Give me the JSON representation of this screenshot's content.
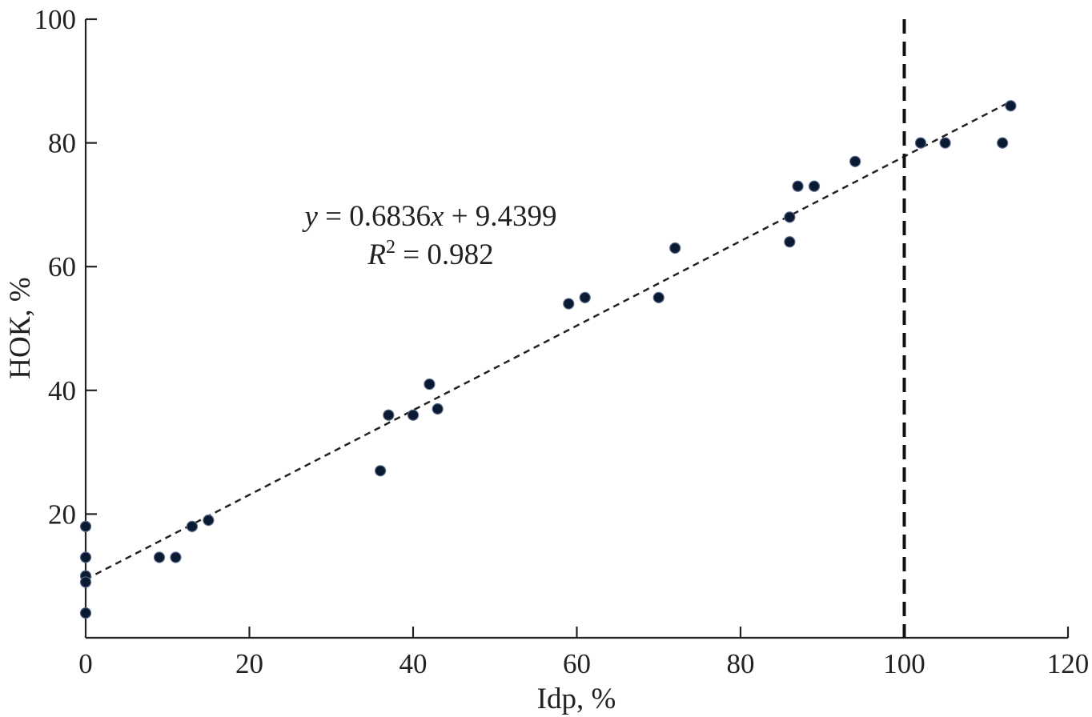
{
  "chart_data": {
    "type": "scatter",
    "title": "",
    "xlabel": "Idp, %",
    "ylabel": "НОК, %",
    "xlim": [
      0,
      120
    ],
    "ylim": [
      0,
      100
    ],
    "x_ticks": [
      0,
      20,
      40,
      60,
      80,
      100,
      120
    ],
    "y_ticks": [
      20,
      40,
      60,
      80,
      100
    ],
    "grid": false,
    "legend": "none",
    "series": [
      {
        "points": [
          {
            "x": 0,
            "y": 18
          },
          {
            "x": 0,
            "y": 13
          },
          {
            "x": 0,
            "y": 10
          },
          {
            "x": 0,
            "y": 9
          },
          {
            "x": 0,
            "y": 4
          },
          {
            "x": 9,
            "y": 13
          },
          {
            "x": 11,
            "y": 13
          },
          {
            "x": 13,
            "y": 18
          },
          {
            "x": 15,
            "y": 19
          },
          {
            "x": 36,
            "y": 27
          },
          {
            "x": 37,
            "y": 36
          },
          {
            "x": 40,
            "y": 36
          },
          {
            "x": 42,
            "y": 41
          },
          {
            "x": 43,
            "y": 37
          },
          {
            "x": 59,
            "y": 54
          },
          {
            "x": 61,
            "y": 55
          },
          {
            "x": 70,
            "y": 55
          },
          {
            "x": 72,
            "y": 63
          },
          {
            "x": 86,
            "y": 68
          },
          {
            "x": 86,
            "y": 64
          },
          {
            "x": 87,
            "y": 73
          },
          {
            "x": 89,
            "y": 73
          },
          {
            "x": 94,
            "y": 77
          },
          {
            "x": 102,
            "y": 80
          },
          {
            "x": 105,
            "y": 80
          },
          {
            "x": 112,
            "y": 80
          },
          {
            "x": 113,
            "y": 86
          }
        ]
      }
    ],
    "trendline": {
      "slope": 0.6836,
      "intercept": 9.4399,
      "x_range": [
        0,
        113
      ],
      "style": "dashed"
    },
    "reference_line": {
      "x": 100,
      "style": "dashed",
      "orientation": "vertical"
    },
    "annotation": {
      "equation_y": "y",
      "equation_rest": " = 0.6836",
      "equation_x": "x",
      "equation_tail": " + 9.4399",
      "r2_R": "R",
      "r2_sup": "2",
      "r2_rest": " = 0.982"
    }
  }
}
